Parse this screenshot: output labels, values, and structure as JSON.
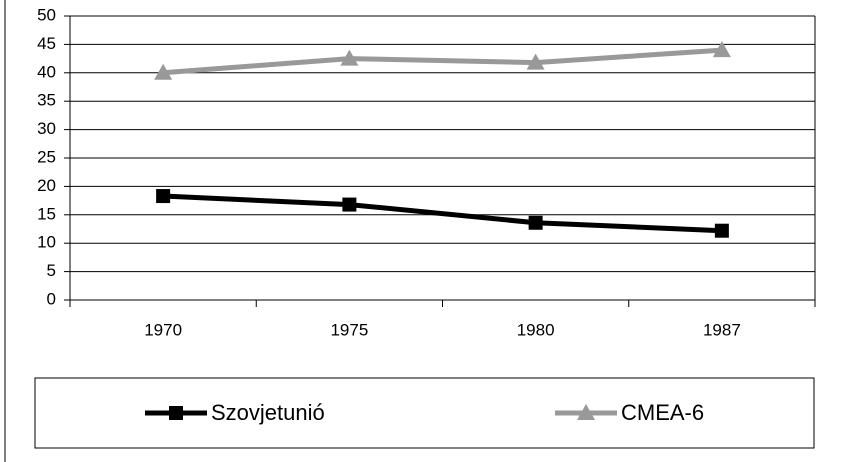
{
  "chart_data": {
    "type": "line",
    "categories": [
      "1970",
      "1975",
      "1980",
      "1987"
    ],
    "series": [
      {
        "name": "Szovjetunió",
        "color": "#000000",
        "marker": "square",
        "values": [
          18.3,
          16.8,
          13.6,
          12.2
        ]
      },
      {
        "name": "CMEA-6",
        "color": "#999999",
        "marker": "triangle",
        "values": [
          40,
          42.5,
          41.8,
          44
        ]
      }
    ],
    "ylim": [
      0,
      50
    ],
    "yticks": [
      0,
      5,
      10,
      15,
      20,
      25,
      30,
      35,
      40,
      45,
      50
    ],
    "grid": true
  }
}
